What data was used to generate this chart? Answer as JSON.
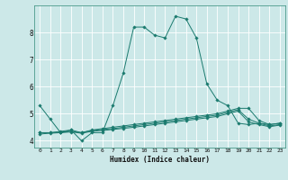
{
  "xlabel": "Humidex (Indice chaleur)",
  "background_color": "#cce8e8",
  "grid_color": "#ffffff",
  "line_color": "#1a7a6e",
  "xlim": [
    -0.5,
    23.5
  ],
  "ylim": [
    3.75,
    9.0
  ],
  "xticks": [
    0,
    1,
    2,
    3,
    4,
    5,
    6,
    7,
    8,
    9,
    10,
    11,
    12,
    13,
    14,
    15,
    16,
    17,
    18,
    19,
    20,
    21,
    22,
    23
  ],
  "yticks": [
    4,
    5,
    6,
    7,
    8
  ],
  "s0_x": [
    0,
    1,
    2,
    3,
    4,
    5,
    6,
    7,
    8,
    9,
    10,
    11,
    12,
    13,
    14,
    15,
    16,
    17,
    18,
    19,
    20,
    21,
    22,
    23
  ],
  "s0_y": [
    5.3,
    4.8,
    4.3,
    4.4,
    4.0,
    4.3,
    4.3,
    5.3,
    6.5,
    8.2,
    8.2,
    7.9,
    7.8,
    8.6,
    8.5,
    7.8,
    6.1,
    5.5,
    5.3,
    4.65,
    4.6,
    4.65,
    4.6,
    4.65
  ],
  "s1_x": [
    0,
    1,
    2,
    3,
    4,
    5,
    6,
    7,
    8,
    9,
    10,
    11,
    12,
    13,
    14,
    15,
    16,
    17,
    18,
    19,
    20,
    21,
    22,
    23
  ],
  "s1_y": [
    4.3,
    4.3,
    4.35,
    4.4,
    4.3,
    4.4,
    4.45,
    4.5,
    4.55,
    4.6,
    4.65,
    4.7,
    4.75,
    4.8,
    4.85,
    4.9,
    4.95,
    5.0,
    5.1,
    5.2,
    5.2,
    4.75,
    4.6,
    4.65
  ],
  "s2_x": [
    0,
    1,
    2,
    3,
    4,
    5,
    6,
    7,
    8,
    9,
    10,
    11,
    12,
    13,
    14,
    15,
    16,
    17,
    18,
    19,
    20,
    21,
    22,
    23
  ],
  "s2_y": [
    4.3,
    4.3,
    4.32,
    4.35,
    4.3,
    4.38,
    4.42,
    4.45,
    4.5,
    4.55,
    4.6,
    4.65,
    4.7,
    4.75,
    4.8,
    4.85,
    4.9,
    4.95,
    5.05,
    5.15,
    4.8,
    4.65,
    4.55,
    4.6
  ],
  "s3_x": [
    0,
    1,
    2,
    3,
    4,
    5,
    6,
    7,
    8,
    9,
    10,
    11,
    12,
    13,
    14,
    15,
    16,
    17,
    18,
    19,
    20,
    21,
    22,
    23
  ],
  "s3_y": [
    4.25,
    4.28,
    4.3,
    4.33,
    4.28,
    4.35,
    4.38,
    4.42,
    4.46,
    4.5,
    4.55,
    4.6,
    4.65,
    4.7,
    4.75,
    4.8,
    4.85,
    4.9,
    5.0,
    5.1,
    4.7,
    4.6,
    4.52,
    4.58
  ]
}
